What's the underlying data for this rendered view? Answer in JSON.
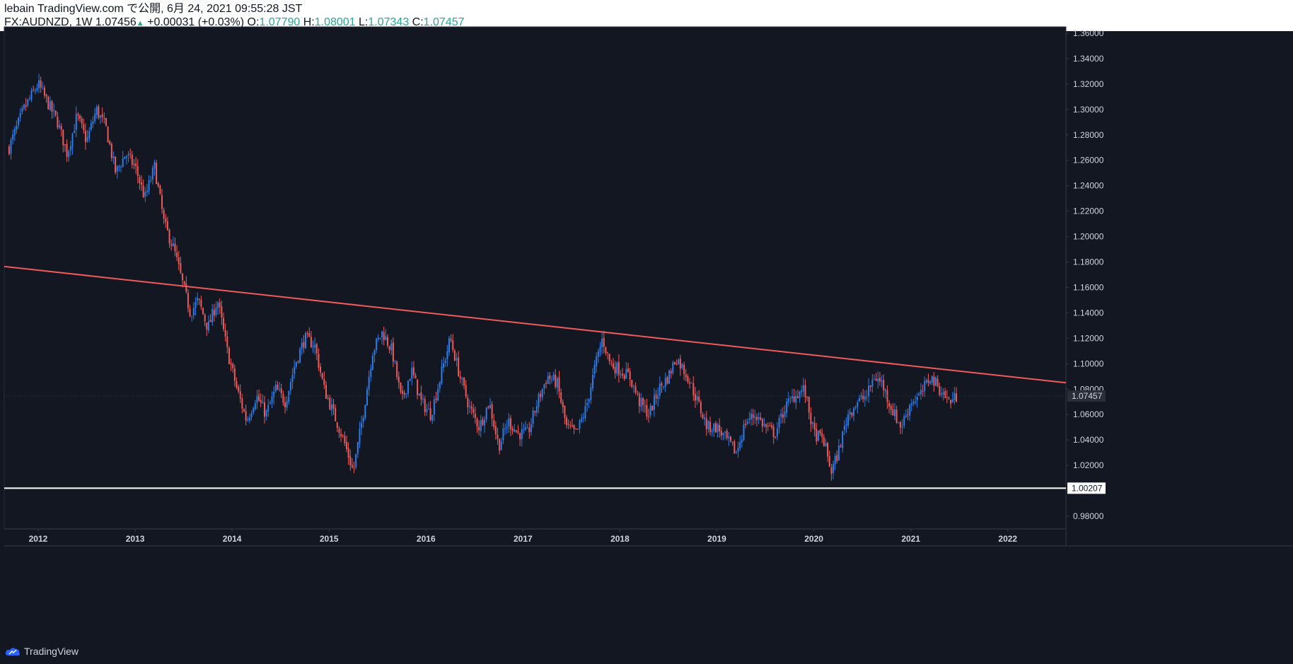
{
  "header": {
    "publish_line": "lebain TradingView.com で公開, 6月 24, 2021 09:55:28 JST",
    "symbol": "FX:AUDNZD, 1W",
    "last": "1.07456",
    "up_arrow": "▲",
    "change": "+0.00031 (+0.03%)",
    "o_label": "O:",
    "o_value": "1.07790",
    "h_label": "H:",
    "h_value": "1.08001",
    "l_label": "L:",
    "l_value": "1.07343",
    "c_label": "C:",
    "c_value": "1.07457"
  },
  "footer": {
    "brand": "TradingView",
    "brand_icon": "tradingview-cloud-icon"
  },
  "colors": {
    "bg": "#131722",
    "up": "#2b7de9",
    "down": "#f05a5a",
    "trendline": "#f05a5a",
    "support": "#ffffff",
    "axis_text": "#d1d4dc",
    "grid": "#2a2e39"
  },
  "chart_data": {
    "type": "candlestick",
    "x_range": [
      2011.65,
      2022.6
    ],
    "y_range": [
      0.97,
      1.365
    ],
    "x_ticks": [
      "2012",
      "2013",
      "2014",
      "2015",
      "2016",
      "2017",
      "2018",
      "2019",
      "2020",
      "2021",
      "2022"
    ],
    "y_ticks": [
      "1.36000",
      "1.34000",
      "1.32000",
      "1.30000",
      "1.28000",
      "1.26000",
      "1.24000",
      "1.22000",
      "1.20000",
      "1.18000",
      "1.16000",
      "1.14000",
      "1.12000",
      "1.10000",
      "1.08000",
      "1.06000",
      "1.04000",
      "1.02000",
      "0.98000"
    ],
    "price_labels": [
      {
        "label": "1.07457",
        "value": 1.07457,
        "style": "current"
      },
      {
        "label": "1.00207",
        "value": 1.00207,
        "style": "support"
      }
    ],
    "trendline": {
      "x": [
        2011.65,
        2022.6
      ],
      "y": [
        1.1765,
        1.085
      ]
    },
    "support_line": {
      "y": 1.00207
    },
    "close_path": [
      [
        2011.7,
        1.27
      ],
      [
        2011.85,
        1.3
      ],
      [
        2012.0,
        1.32
      ],
      [
        2012.1,
        1.305
      ],
      [
        2012.2,
        1.29
      ],
      [
        2012.3,
        1.265
      ],
      [
        2012.4,
        1.295
      ],
      [
        2012.5,
        1.275
      ],
      [
        2012.6,
        1.3
      ],
      [
        2012.7,
        1.285
      ],
      [
        2012.8,
        1.25
      ],
      [
        2012.9,
        1.265
      ],
      [
        2013.0,
        1.255
      ],
      [
        2013.1,
        1.23
      ],
      [
        2013.2,
        1.255
      ],
      [
        2013.3,
        1.21
      ],
      [
        2013.4,
        1.19
      ],
      [
        2013.5,
        1.16
      ],
      [
        2013.57,
        1.14
      ],
      [
        2013.65,
        1.15
      ],
      [
        2013.75,
        1.128
      ],
      [
        2013.85,
        1.15
      ],
      [
        2013.95,
        1.11
      ],
      [
        2014.05,
        1.08
      ],
      [
        2014.15,
        1.055
      ],
      [
        2014.25,
        1.075
      ],
      [
        2014.35,
        1.06
      ],
      [
        2014.45,
        1.08
      ],
      [
        2014.55,
        1.07
      ],
      [
        2014.65,
        1.1
      ],
      [
        2014.75,
        1.12
      ],
      [
        2014.85,
        1.115
      ],
      [
        2014.95,
        1.08
      ],
      [
        2015.05,
        1.06
      ],
      [
        2015.15,
        1.04
      ],
      [
        2015.25,
        1.015
      ],
      [
        2015.35,
        1.06
      ],
      [
        2015.45,
        1.11
      ],
      [
        2015.55,
        1.125
      ],
      [
        2015.65,
        1.11
      ],
      [
        2015.75,
        1.07
      ],
      [
        2015.85,
        1.095
      ],
      [
        2015.95,
        1.07
      ],
      [
        2016.05,
        1.06
      ],
      [
        2016.15,
        1.09
      ],
      [
        2016.25,
        1.12
      ],
      [
        2016.35,
        1.09
      ],
      [
        2016.45,
        1.065
      ],
      [
        2016.55,
        1.05
      ],
      [
        2016.65,
        1.07
      ],
      [
        2016.75,
        1.035
      ],
      [
        2016.85,
        1.055
      ],
      [
        2016.95,
        1.045
      ],
      [
        2017.05,
        1.045
      ],
      [
        2017.15,
        1.07
      ],
      [
        2017.25,
        1.09
      ],
      [
        2017.35,
        1.085
      ],
      [
        2017.45,
        1.05
      ],
      [
        2017.55,
        1.045
      ],
      [
        2017.65,
        1.065
      ],
      [
        2017.75,
        1.1
      ],
      [
        2017.82,
        1.12
      ],
      [
        2017.9,
        1.1
      ],
      [
        2018.0,
        1.095
      ],
      [
        2018.1,
        1.09
      ],
      [
        2018.2,
        1.07
      ],
      [
        2018.3,
        1.06
      ],
      [
        2018.4,
        1.08
      ],
      [
        2018.5,
        1.09
      ],
      [
        2018.58,
        1.105
      ],
      [
        2018.7,
        1.09
      ],
      [
        2018.8,
        1.07
      ],
      [
        2018.9,
        1.05
      ],
      [
        2019.0,
        1.05
      ],
      [
        2019.1,
        1.04
      ],
      [
        2019.2,
        1.03
      ],
      [
        2019.3,
        1.055
      ],
      [
        2019.4,
        1.06
      ],
      [
        2019.5,
        1.05
      ],
      [
        2019.6,
        1.045
      ],
      [
        2019.7,
        1.065
      ],
      [
        2019.8,
        1.075
      ],
      [
        2019.9,
        1.08
      ],
      [
        2020.0,
        1.045
      ],
      [
        2020.1,
        1.04
      ],
      [
        2020.18,
        1.015
      ],
      [
        2020.25,
        1.03
      ],
      [
        2020.35,
        1.06
      ],
      [
        2020.45,
        1.07
      ],
      [
        2020.55,
        1.075
      ],
      [
        2020.62,
        1.09
      ],
      [
        2020.7,
        1.085
      ],
      [
        2020.8,
        1.065
      ],
      [
        2020.9,
        1.05
      ],
      [
        2021.0,
        1.07
      ],
      [
        2021.1,
        1.075
      ],
      [
        2021.2,
        1.09
      ],
      [
        2021.3,
        1.08
      ],
      [
        2021.4,
        1.07
      ],
      [
        2021.48,
        1.07457
      ]
    ]
  }
}
